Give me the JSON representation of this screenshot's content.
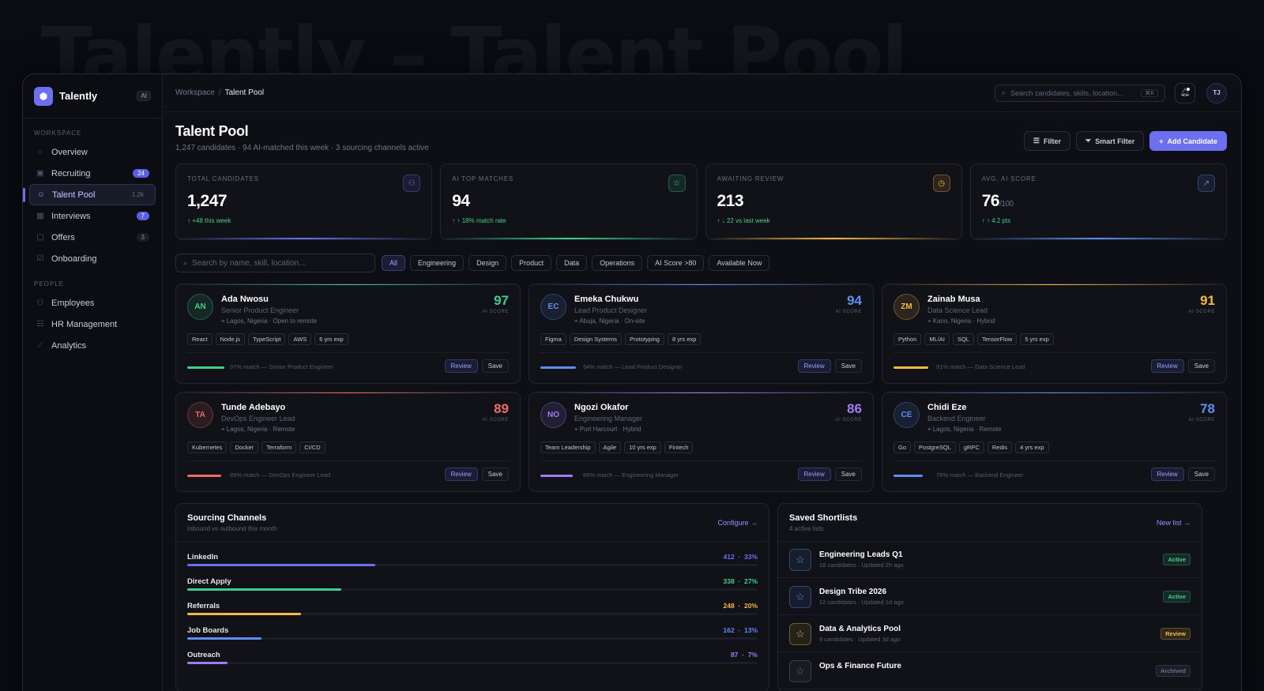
{
  "background_title": "Talently – Talent Pool",
  "brand": {
    "name": "Talently",
    "badge": "AI",
    "logo_icon": "logo-icon"
  },
  "sidebar": {
    "sections": [
      {
        "label": "WORKSPACE",
        "items": [
          {
            "label": "Overview",
            "icon": "home-icon",
            "count": ""
          },
          {
            "label": "Recruiting",
            "icon": "briefcase-icon",
            "count": "24"
          },
          {
            "label": "Talent Pool",
            "icon": "user-icon",
            "count": "1.2k",
            "active": true
          },
          {
            "label": "Interviews",
            "icon": "calendar-icon",
            "count": "7"
          },
          {
            "label": "Offers",
            "icon": "document-icon",
            "count": "3"
          },
          {
            "label": "Onboarding",
            "icon": "checklist-icon",
            "count": ""
          }
        ]
      },
      {
        "label": "PEOPLE",
        "items": [
          {
            "label": "Employees",
            "icon": "users-icon",
            "count": ""
          },
          {
            "label": "HR Management",
            "icon": "id-icon",
            "count": ""
          },
          {
            "label": "Analytics",
            "icon": "chart-icon",
            "count": ""
          }
        ]
      }
    ]
  },
  "topbar": {
    "breadcrumb_root": "Workspace",
    "breadcrumb_sep": "/",
    "breadcrumb_current": "Talent Pool",
    "search_placeholder": "Search candidates, skills, location...",
    "search_shortcut": "⌘K",
    "user_initials": "TJ"
  },
  "page": {
    "title": "Talent Pool",
    "subtitle": "1,247 candidates · 94 AI-matched this week · 3 sourcing channels active",
    "actions": {
      "filter": "Filter",
      "smart_filter": "Smart Filter",
      "add": "Add Candidate"
    }
  },
  "stats": [
    {
      "label": "TOTAL CANDIDATES",
      "value": "1,247",
      "suffix": "",
      "delta": "+48 this week",
      "icon": "users-icon",
      "color": "#6b6ff0"
    },
    {
      "label": "AI TOP MATCHES",
      "value": "94",
      "suffix": "",
      "delta": "18% match rate",
      "icon": "star-icon",
      "color": "#3ecf8e"
    },
    {
      "label": "AWAITING REVIEW",
      "value": "213",
      "suffix": "",
      "delta": "22 vs last week",
      "icon": "clock-icon",
      "color": "#f5b942"
    },
    {
      "label": "AVG. AI SCORE",
      "value": "76",
      "suffix": "/100",
      "delta": "4.2 pts",
      "icon": "trend-icon",
      "color": "#5b8ef0"
    }
  ],
  "filters": {
    "search_placeholder": "Search by name, skill, location...",
    "chips": [
      "All",
      "Engineering",
      "Design",
      "Product",
      "Data",
      "Operations",
      "AI Score >80",
      "Available Now"
    ]
  },
  "candidates": [
    {
      "initials": "AN",
      "name": "Ada Nwosu",
      "role": "Senior Product Engineer",
      "location": "Lagos, Nigeria · Open to remote",
      "score": "97",
      "score_label": "AI SCORE",
      "tags": [
        "React",
        "Node.js",
        "TypeScript",
        "AWS",
        "6 yrs exp"
      ],
      "match": "97% match — Senior Product Engineer",
      "match_pct": 0.97,
      "color": "#3ecf8e"
    },
    {
      "initials": "EC",
      "name": "Emeka Chukwu",
      "role": "Lead Product Designer",
      "location": "Abuja, Nigeria · On-site",
      "score": "94",
      "score_label": "AI SCORE",
      "tags": [
        "Figma",
        "Design Systems",
        "Prototyping",
        "8 yrs exp"
      ],
      "match": "94% match — Lead Product Designer",
      "match_pct": 0.94,
      "color": "#5b8ef0"
    },
    {
      "initials": "ZM",
      "name": "Zainab Musa",
      "role": "Data Science Lead",
      "location": "Kano, Nigeria · Hybrid",
      "score": "91",
      "score_label": "AI SCORE",
      "tags": [
        "Python",
        "ML/AI",
        "SQL",
        "TensorFlow",
        "5 yrs exp"
      ],
      "match": "91% match — Data Science Lead",
      "match_pct": 0.91,
      "color": "#f5b942"
    },
    {
      "initials": "TA",
      "name": "Tunde Adebayo",
      "role": "DevOps Engineer Lead",
      "location": "Lagos, Nigeria · Remote",
      "score": "89",
      "score_label": "AI SCORE",
      "tags": [
        "Kubernetes",
        "Docker",
        "Terraform",
        "CI/CD"
      ],
      "match": "89% match — DevOps Engineer Lead",
      "match_pct": 0.89,
      "color": "#f06a6a"
    },
    {
      "initials": "NO",
      "name": "Ngozi Okafor",
      "role": "Engineering Manager",
      "location": "Port Harcourt · Hybrid",
      "score": "86",
      "score_label": "AI SCORE",
      "tags": [
        "Team Leadership",
        "Agile",
        "10 yrs exp",
        "Fintech"
      ],
      "match": "86% match — Engineering Manager",
      "match_pct": 0.86,
      "color": "#a17df5"
    },
    {
      "initials": "CE",
      "name": "Chidi Eze",
      "role": "Backend Engineer",
      "location": "Lagos, Nigeria · Remote",
      "score": "78",
      "score_label": "AI SCORE",
      "tags": [
        "Go",
        "PostgreSQL",
        "gRPC",
        "Redis",
        "4 yrs exp"
      ],
      "match": "78% match — Backend Engineer",
      "match_pct": 0.78,
      "color": "#5b8ef0"
    }
  ],
  "card_buttons": {
    "review": "Review",
    "save": "Save"
  },
  "sourcing": {
    "title": "Sourcing Channels",
    "subtitle": "Inbound vs outbound this month",
    "link": "Configure →",
    "channels": [
      {
        "label": "LinkedIn",
        "count": "412",
        "pct": "33%",
        "value": 0.33,
        "color": "#6b6ff0"
      },
      {
        "label": "Direct Apply",
        "count": "338",
        "pct": "27%",
        "value": 0.27,
        "color": "#3ecf8e"
      },
      {
        "label": "Referrals",
        "count": "248",
        "pct": "20%",
        "value": 0.2,
        "color": "#f5b942"
      },
      {
        "label": "Job Boards",
        "count": "162",
        "pct": "13%",
        "value": 0.13,
        "color": "#5b8ef0"
      },
      {
        "label": "Outreach",
        "count": "87",
        "pct": "7%",
        "value": 0.07,
        "color": "#a17df5"
      }
    ]
  },
  "shortlists": {
    "title": "Saved Shortlists",
    "subtitle": "4 active lists",
    "link": "New list →",
    "items": [
      {
        "name": "Engineering Leads Q1",
        "meta": "18 candidates · Updated 2h ago",
        "status": "Active",
        "color": "#5b8ef0",
        "badge_color": "#3ecf8e"
      },
      {
        "name": "Design Tribe 2026",
        "meta": "12 candidates · Updated 1d ago",
        "status": "Active",
        "color": "#5b8ef0",
        "badge_color": "#3ecf8e"
      },
      {
        "name": "Data & Analytics Pool",
        "meta": "9 candidates · Updated 3d ago",
        "status": "Review",
        "color": "#f5b942",
        "badge_color": "#f5b942"
      },
      {
        "name": "Ops & Finance Future",
        "meta": "",
        "status": "Archived",
        "color": "#6c7084",
        "badge_color": "#6c7084"
      }
    ]
  }
}
